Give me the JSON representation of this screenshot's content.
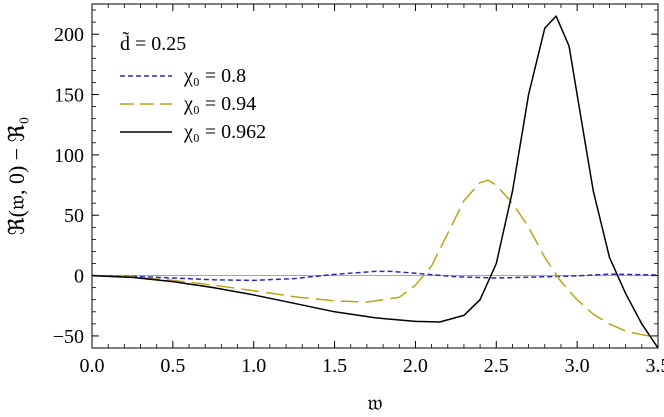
{
  "chart_data": {
    "type": "line",
    "title": "",
    "xlabel": "𝔴",
    "ylabel": "ℜ(𝔴, 0) − ℜ₀",
    "xlim": [
      0,
      3.5
    ],
    "ylim": [
      -60,
      225
    ],
    "x_ticks": [
      0.0,
      0.5,
      1.0,
      1.5,
      2.0,
      2.5,
      3.0,
      3.5
    ],
    "x_tick_labels": [
      "0.0",
      "0.5",
      "1.0",
      "1.5",
      "2.0",
      "2.5",
      "3.0",
      "3.5"
    ],
    "y_ticks": [
      -50,
      0,
      50,
      100,
      150,
      200
    ],
    "y_tick_labels": [
      "−50",
      "0",
      "50",
      "100",
      "150",
      "200"
    ],
    "grid": false,
    "legend_position": "top-left",
    "legend_header": "d̃ = 0.25",
    "series": [
      {
        "name": "χ₀ = 0.8",
        "color": "#2b2bb0",
        "dash": "short-dash",
        "x": [
          0,
          0.25,
          0.5,
          0.75,
          1.0,
          1.25,
          1.5,
          1.75,
          1.85,
          2.0,
          2.25,
          2.5,
          2.75,
          3.0,
          3.2,
          3.5
        ],
        "y": [
          0,
          -0.6,
          -2,
          -3.5,
          -4,
          -2.5,
          1,
          3.5,
          3.5,
          2,
          -1,
          -2,
          -1.2,
          -0.3,
          1.2,
          0.5
        ]
      },
      {
        "name": "χ₀ = 0.94",
        "color": "#b8a617",
        "dash": "long-dash",
        "x": [
          0,
          0.25,
          0.5,
          0.75,
          1.0,
          1.25,
          1.5,
          1.7,
          1.9,
          2.0,
          2.1,
          2.2,
          2.3,
          2.4,
          2.45,
          2.5,
          2.6,
          2.7,
          2.8,
          2.9,
          3.0,
          3.1,
          3.2,
          3.3,
          3.4,
          3.5
        ],
        "y": [
          0,
          -1,
          -4,
          -8,
          -12.5,
          -17.5,
          -21,
          -22,
          -18,
          -8,
          8,
          35,
          62,
          77,
          79,
          75,
          60,
          40,
          15,
          -5,
          -20,
          -32,
          -40,
          -46,
          -49,
          -51
        ]
      },
      {
        "name": "χ₀ = 0.962",
        "color": "#000000",
        "dash": "solid",
        "x": [
          0,
          0.25,
          0.5,
          0.75,
          1.0,
          1.25,
          1.5,
          1.75,
          2.0,
          2.15,
          2.3,
          2.4,
          2.5,
          2.6,
          2.7,
          2.8,
          2.87,
          2.95,
          3.0,
          3.1,
          3.2,
          3.3,
          3.4,
          3.5
        ],
        "y": [
          0,
          -1.5,
          -5,
          -10,
          -16,
          -23,
          -30,
          -35,
          -38,
          -38.5,
          -33,
          -20,
          10,
          70,
          150,
          205,
          215,
          190,
          150,
          70,
          15,
          -15,
          -40,
          -60
        ]
      }
    ]
  }
}
